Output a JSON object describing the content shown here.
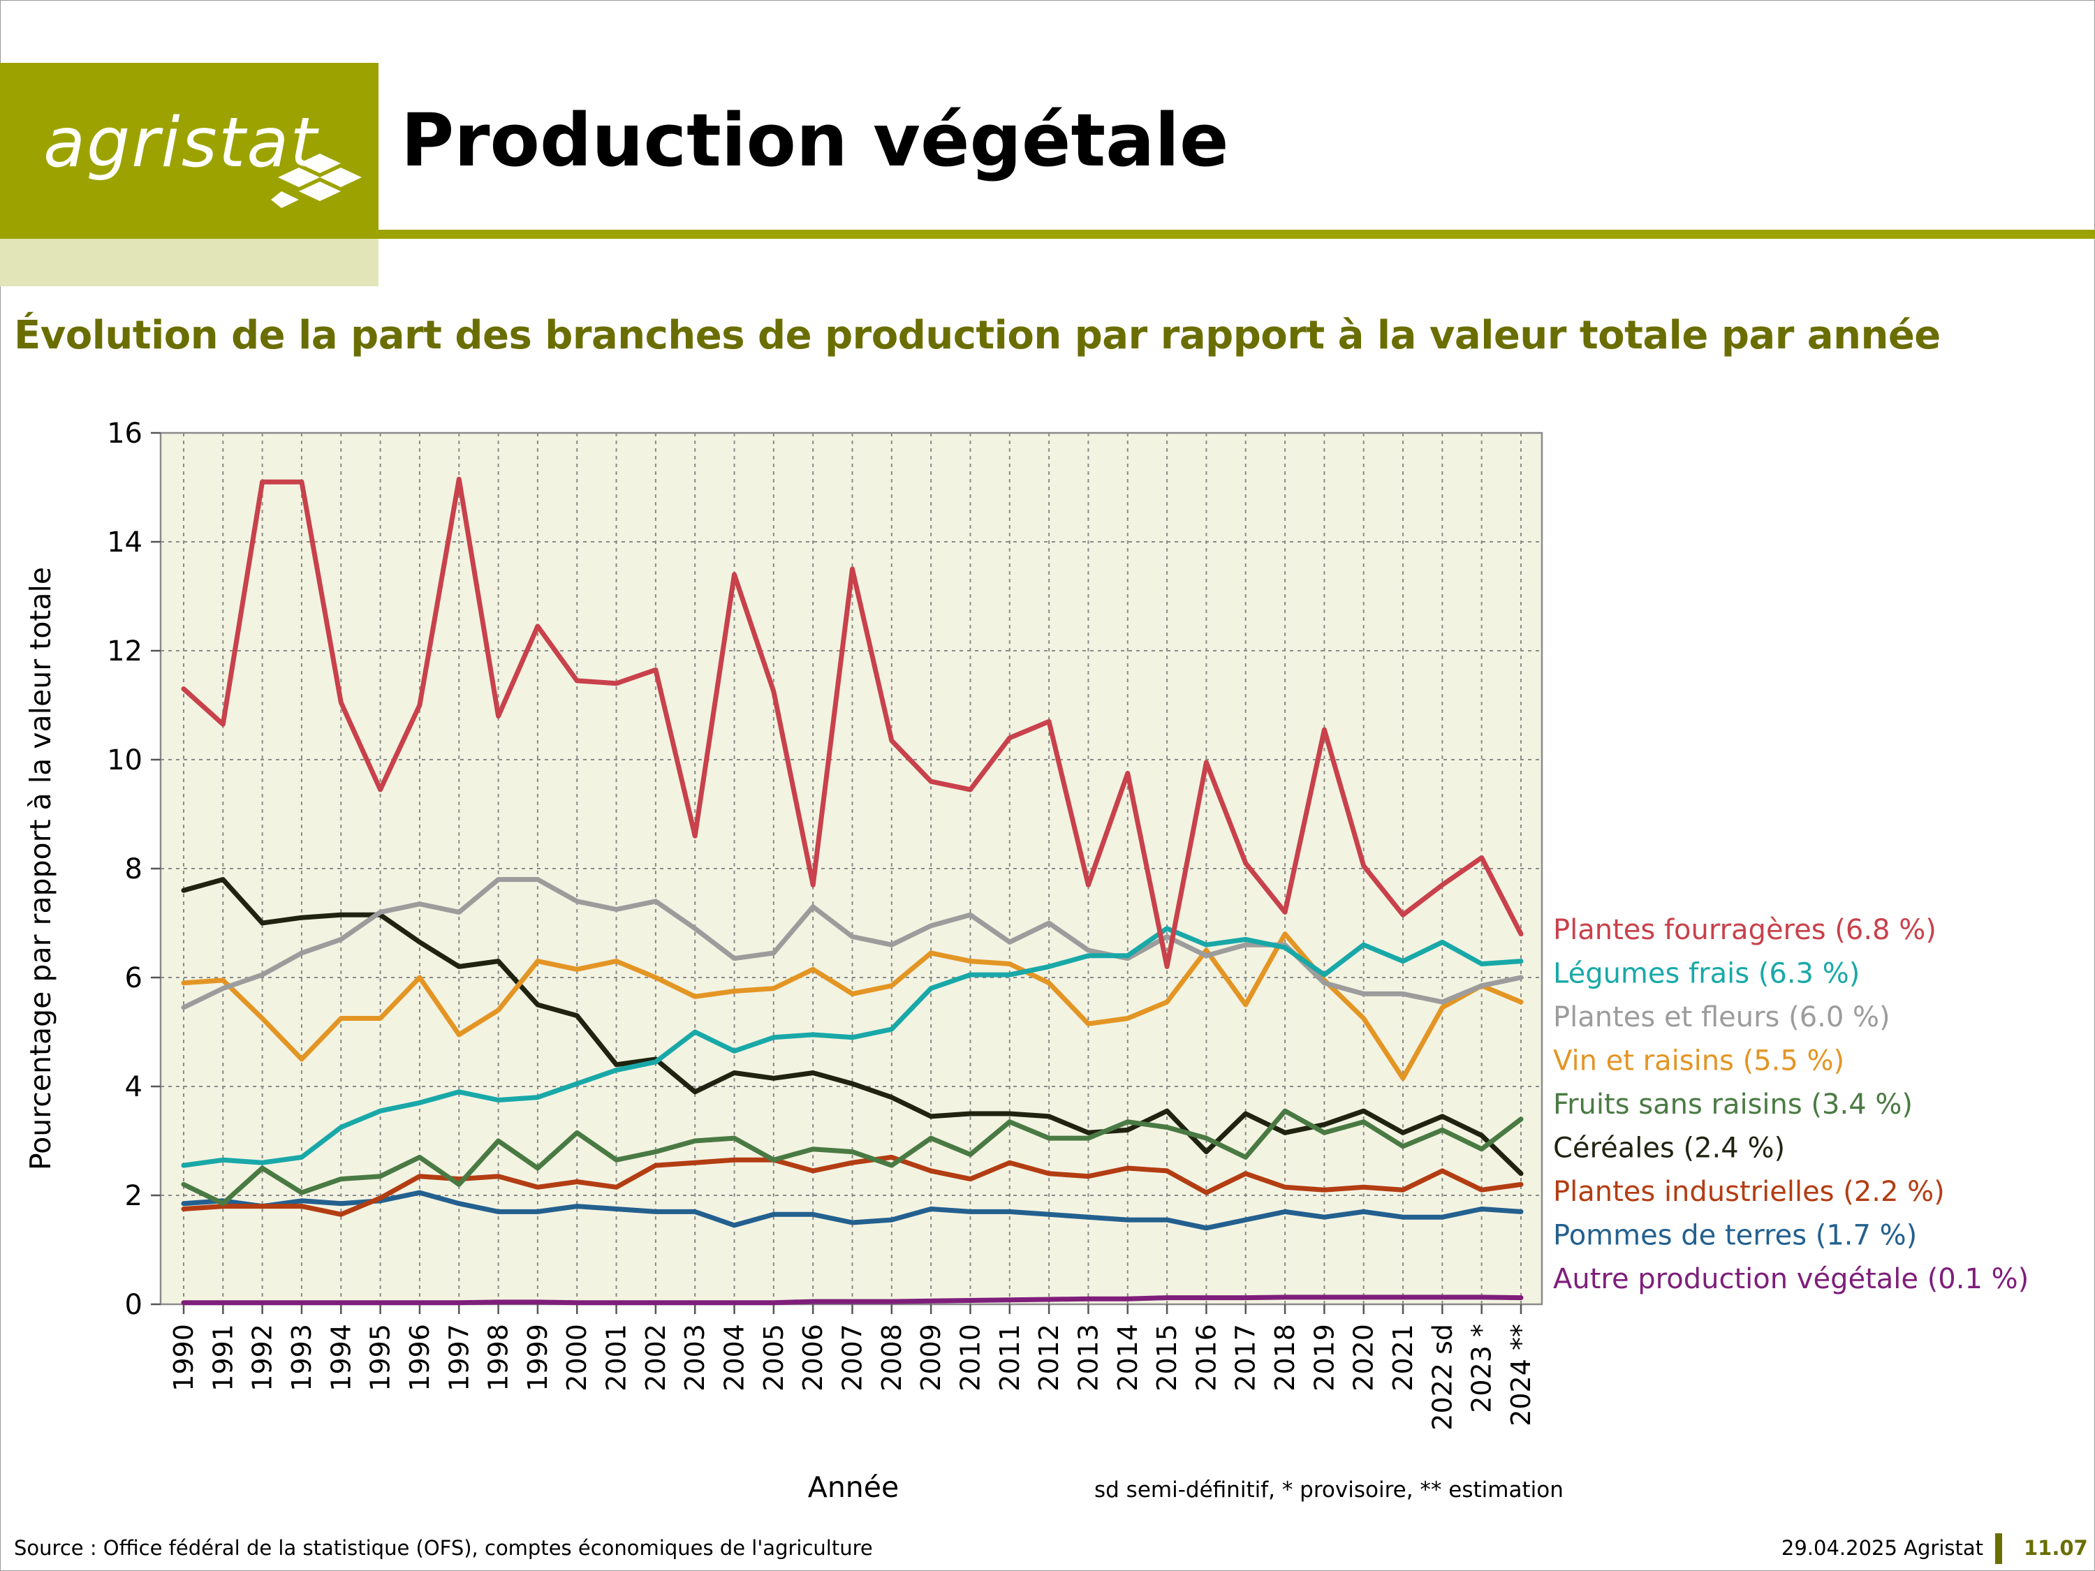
{
  "header": {
    "logo_text": "agristat",
    "title": "Production végétale"
  },
  "subtitle": "Évolution de la part des branches de production par rapport à la valeur totale par année",
  "note": "sd semi-définitif, * provisoire, ** estimation",
  "footer": {
    "source": "Source : Office fédéral de la statistique (OFS), comptes économiques de l'agriculture",
    "date": "29.04.2025 Agristat",
    "page": "11.07"
  },
  "colors": {
    "brand": "#9ca300",
    "brand_light": "#e2e5b7",
    "subtitle": "#6a6e00",
    "plot_bg": "#f3f3e2"
  },
  "chart_data": {
    "type": "line",
    "xlabel": "Année",
    "ylabel": "Pourcentage par rapport à la valeur totale",
    "ylim": [
      0,
      16
    ],
    "yticks": [
      0,
      2,
      4,
      6,
      8,
      10,
      12,
      14,
      16
    ],
    "grid": true,
    "legend": "right",
    "categories": [
      "1990",
      "1991",
      "1992",
      "1993",
      "1994",
      "1995",
      "1996",
      "1997",
      "1998",
      "1999",
      "2000",
      "2001",
      "2002",
      "2003",
      "2004",
      "2005",
      "2006",
      "2007",
      "2008",
      "2009",
      "2010",
      "2011",
      "2012",
      "2013",
      "2014",
      "2015",
      "2016",
      "2017",
      "2018",
      "2019",
      "2020",
      "2021",
      "2022 sd",
      "2023 *",
      "2024 **"
    ],
    "series": [
      {
        "name": "Plantes fourragères (6.8 %)",
        "color": "#c8414b",
        "values": [
          11.3,
          10.65,
          15.1,
          15.1,
          11.05,
          9.45,
          11.0,
          15.15,
          10.8,
          12.45,
          11.45,
          11.4,
          11.65,
          8.6,
          13.4,
          11.25,
          7.7,
          13.5,
          10.35,
          9.6,
          9.45,
          10.4,
          10.7,
          7.7,
          9.75,
          6.2,
          9.95,
          8.1,
          7.2,
          10.55,
          8.05,
          7.15,
          7.7,
          8.2,
          6.8
        ]
      },
      {
        "name": "Légumes frais (6.3 %)",
        "color": "#19a8a8",
        "values": [
          2.55,
          2.65,
          2.6,
          2.7,
          3.25,
          3.55,
          3.7,
          3.9,
          3.75,
          3.8,
          4.05,
          4.3,
          4.45,
          5.0,
          4.65,
          4.9,
          4.95,
          4.9,
          5.05,
          5.8,
          6.05,
          6.05,
          6.2,
          6.4,
          6.4,
          6.9,
          6.6,
          6.7,
          6.55,
          6.05,
          6.6,
          6.3,
          6.65,
          6.25,
          6.3
        ]
      },
      {
        "name": "Plantes et fleurs (6.0 %)",
        "color": "#9c9c9c",
        "values": [
          5.45,
          5.8,
          6.05,
          6.45,
          6.7,
          7.2,
          7.35,
          7.2,
          7.8,
          7.8,
          7.4,
          7.25,
          7.4,
          6.9,
          6.35,
          6.45,
          7.3,
          6.75,
          6.6,
          6.95,
          7.15,
          6.65,
          7.0,
          6.5,
          6.35,
          6.75,
          6.4,
          6.6,
          6.6,
          5.9,
          5.7,
          5.7,
          5.55,
          5.85,
          6.0
        ]
      },
      {
        "name": "Vin et raisins (5.5 %)",
        "color": "#e39524",
        "values": [
          5.9,
          5.95,
          5.25,
          4.5,
          5.25,
          5.25,
          6.0,
          4.95,
          5.4,
          6.3,
          6.15,
          6.3,
          6.0,
          5.65,
          5.75,
          5.8,
          6.15,
          5.7,
          5.85,
          6.45,
          6.3,
          6.25,
          5.9,
          5.15,
          5.25,
          5.55,
          6.5,
          5.5,
          6.8,
          5.95,
          5.25,
          4.15,
          5.45,
          5.85,
          5.55
        ]
      },
      {
        "name": "Fruits sans raisins  (3.4 %)",
        "color": "#4a7a43",
        "values": [
          2.2,
          1.85,
          2.5,
          2.05,
          2.3,
          2.35,
          2.7,
          2.2,
          3.0,
          2.5,
          3.15,
          2.65,
          2.8,
          3.0,
          3.05,
          2.65,
          2.85,
          2.8,
          2.55,
          3.05,
          2.75,
          3.35,
          3.05,
          3.05,
          3.35,
          3.25,
          3.05,
          2.7,
          3.55,
          3.15,
          3.35,
          2.9,
          3.2,
          2.85,
          3.4
        ]
      },
      {
        "name": "Céréales (2.4 %)",
        "color": "#1f2310",
        "values": [
          7.6,
          7.8,
          7.0,
          7.1,
          7.15,
          7.15,
          6.65,
          6.2,
          6.3,
          5.5,
          5.3,
          4.4,
          4.5,
          3.9,
          4.25,
          4.15,
          4.25,
          4.05,
          3.8,
          3.45,
          3.5,
          3.5,
          3.45,
          3.15,
          3.2,
          3.55,
          2.8,
          3.5,
          3.15,
          3.3,
          3.55,
          3.15,
          3.45,
          3.1,
          2.4
        ]
      },
      {
        "name": "Plantes industrielles (2.2 %)",
        "color": "#b33d12",
        "values": [
          1.75,
          1.8,
          1.8,
          1.8,
          1.65,
          1.95,
          2.35,
          2.3,
          2.35,
          2.15,
          2.25,
          2.15,
          2.55,
          2.6,
          2.65,
          2.65,
          2.45,
          2.6,
          2.7,
          2.45,
          2.3,
          2.6,
          2.4,
          2.35,
          2.5,
          2.45,
          2.05,
          2.4,
          2.15,
          2.1,
          2.15,
          2.1,
          2.45,
          2.1,
          2.2
        ]
      },
      {
        "name": "Pommes de terres (1.7 %)",
        "color": "#23608f",
        "values": [
          1.85,
          1.9,
          1.8,
          1.9,
          1.85,
          1.9,
          2.05,
          1.85,
          1.7,
          1.7,
          1.8,
          1.75,
          1.7,
          1.7,
          1.45,
          1.65,
          1.65,
          1.5,
          1.55,
          1.75,
          1.7,
          1.7,
          1.65,
          1.6,
          1.55,
          1.55,
          1.4,
          1.55,
          1.7,
          1.6,
          1.7,
          1.6,
          1.6,
          1.75,
          1.7
        ]
      },
      {
        "name": "Autre production végétale (0.1 %)",
        "color": "#7e1e7a",
        "values": [
          0.03,
          0.03,
          0.03,
          0.03,
          0.03,
          0.03,
          0.03,
          0.03,
          0.04,
          0.04,
          0.03,
          0.03,
          0.03,
          0.03,
          0.03,
          0.03,
          0.05,
          0.05,
          0.05,
          0.06,
          0.07,
          0.08,
          0.09,
          0.1,
          0.1,
          0.12,
          0.12,
          0.12,
          0.13,
          0.13,
          0.13,
          0.13,
          0.13,
          0.13,
          0.12
        ]
      }
    ]
  }
}
